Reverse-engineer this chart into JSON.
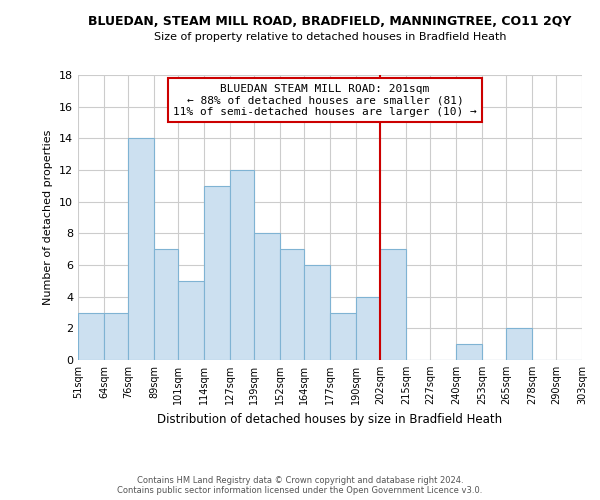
{
  "title": "BLUEDAN, STEAM MILL ROAD, BRADFIELD, MANNINGTREE, CO11 2QY",
  "subtitle": "Size of property relative to detached houses in Bradfield Heath",
  "xlabel": "Distribution of detached houses by size in Bradfield Heath",
  "ylabel": "Number of detached properties",
  "bar_edges": [
    51,
    64,
    76,
    89,
    101,
    114,
    127,
    139,
    152,
    164,
    177,
    190,
    202,
    215,
    227,
    240,
    253,
    265,
    278,
    290,
    303
  ],
  "bar_heights": [
    3,
    3,
    14,
    7,
    5,
    11,
    12,
    8,
    7,
    6,
    3,
    4,
    7,
    0,
    0,
    1,
    0,
    2,
    0,
    0
  ],
  "bar_color": "#cce0f0",
  "bar_edgecolor": "#7fb3d3",
  "vline_x": 202,
  "vline_color": "#cc0000",
  "ylim": [
    0,
    18
  ],
  "yticks": [
    0,
    2,
    4,
    6,
    8,
    10,
    12,
    14,
    16,
    18
  ],
  "tick_labels": [
    "51sqm",
    "64sqm",
    "76sqm",
    "89sqm",
    "101sqm",
    "114sqm",
    "127sqm",
    "139sqm",
    "152sqm",
    "164sqm",
    "177sqm",
    "190sqm",
    "202sqm",
    "215sqm",
    "227sqm",
    "240sqm",
    "253sqm",
    "265sqm",
    "278sqm",
    "290sqm",
    "303sqm"
  ],
  "annotation_title": "BLUEDAN STEAM MILL ROAD: 201sqm",
  "annotation_line1": "← 88% of detached houses are smaller (81)",
  "annotation_line2": "11% of semi-detached houses are larger (10) →",
  "footer1": "Contains HM Land Registry data © Crown copyright and database right 2024.",
  "footer2": "Contains public sector information licensed under the Open Government Licence v3.0.",
  "bg_color": "#ffffff",
  "grid_color": "#cccccc",
  "figsize": [
    6.0,
    5.0
  ],
  "dpi": 100
}
